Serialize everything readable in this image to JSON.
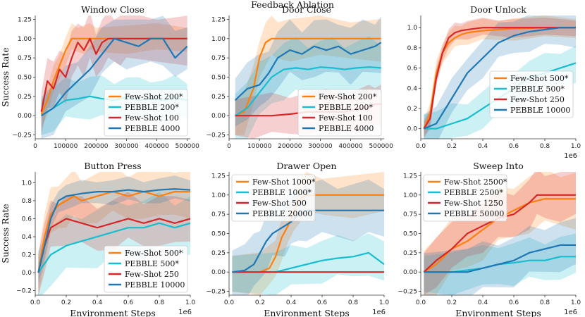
{
  "figure": {
    "suptitle": "Feedback Ablation"
  },
  "colors": {
    "orange": "#ff7f0e",
    "cyan": "#17becf",
    "red": "#d62728",
    "blue": "#1f77b4"
  },
  "chart_data": [
    {
      "type": "line",
      "title": "Window Close",
      "xlabel": "",
      "ylabel": "Success Rate",
      "xlim": [
        0,
        510000
      ],
      "ylim": [
        -0.3,
        1.3
      ],
      "xticks": [
        0,
        100000,
        200000,
        300000,
        400000,
        500000
      ],
      "xtick_labels": [
        "0",
        "100000",
        "200000",
        "300000",
        "400000",
        "500000"
      ],
      "yticks": [
        -0.25,
        0,
        0.25,
        0.5,
        0.75,
        1.0,
        1.25
      ],
      "ytick_labels": [
        "−0.25",
        "0.00",
        "0.25",
        "0.50",
        "0.75",
        "1.00",
        "1.25"
      ],
      "x_offset_label": "",
      "legend_position": "bottom-right",
      "series": [
        {
          "name": "Few-Shot 200*",
          "color": "orange",
          "x": [
            20000,
            40000,
            60000,
            80000,
            100000,
            120000,
            140000,
            160000,
            180000,
            200000,
            300000,
            400000,
            500000
          ],
          "y": [
            0.02,
            0.2,
            0.45,
            0.65,
            0.85,
            1.0,
            1.0,
            1.0,
            1.0,
            1.0,
            1.0,
            1.0,
            1.0
          ],
          "band": 0.2
        },
        {
          "name": "PEBBLE 200*",
          "color": "cyan",
          "x": [
            20000,
            60000,
            100000,
            140000,
            180000,
            220000,
            260000,
            300000,
            340000,
            380000,
            420000,
            460000,
            500000
          ],
          "y": [
            0.0,
            0.1,
            0.2,
            0.22,
            0.25,
            0.22,
            0.2,
            0.24,
            0.2,
            0.22,
            0.2,
            0.23,
            0.2
          ],
          "band": 0.3
        },
        {
          "name": "Few-Shot 100",
          "color": "red",
          "x": [
            20000,
            40000,
            60000,
            80000,
            100000,
            120000,
            140000,
            160000,
            180000,
            200000,
            220000,
            240000,
            260000,
            280000,
            300000,
            400000,
            500000
          ],
          "y": [
            0.05,
            0.45,
            0.35,
            0.6,
            0.5,
            0.75,
            0.95,
            0.85,
            1.0,
            0.8,
            0.95,
            1.0,
            1.0,
            1.0,
            1.0,
            1.0,
            1.0
          ],
          "band": 0.35
        },
        {
          "name": "PEBBLE 4000",
          "color": "blue",
          "x": [
            20000,
            60000,
            100000,
            140000,
            180000,
            220000,
            260000,
            300000,
            340000,
            380000,
            420000,
            460000,
            500000
          ],
          "y": [
            0.0,
            0.1,
            0.3,
            0.45,
            0.6,
            0.8,
            1.0,
            0.95,
            0.9,
            1.0,
            1.0,
            0.75,
            0.9
          ],
          "band": 0.35
        }
      ]
    },
    {
      "type": "line",
      "title": "Door Close",
      "xlabel": "",
      "ylabel": "",
      "xlim": [
        0,
        510000
      ],
      "ylim": [
        -0.3,
        1.3
      ],
      "xticks": [
        0,
        100000,
        200000,
        300000,
        400000,
        500000
      ],
      "xtick_labels": [
        "0",
        "100000",
        "200000",
        "300000",
        "400000",
        "500000"
      ],
      "yticks": [
        -0.25,
        0,
        0.25,
        0.5,
        0.75,
        1.0,
        1.25
      ],
      "ytick_labels": [
        "−0.25",
        "0.00",
        "0.25",
        "0.50",
        "0.75",
        "1.00",
        "1.25"
      ],
      "x_offset_label": "",
      "legend_position": "bottom-right",
      "series": [
        {
          "name": "Few-Shot 200*",
          "color": "orange",
          "x": [
            20000,
            50000,
            80000,
            100000,
            120000,
            140000,
            160000,
            200000,
            300000,
            400000,
            500000
          ],
          "y": [
            0.0,
            0.05,
            0.35,
            0.75,
            0.95,
            1.0,
            1.0,
            1.0,
            1.0,
            1.0,
            1.0
          ],
          "band": 0.3
        },
        {
          "name": "PEBBLE 200*",
          "color": "cyan",
          "x": [
            20000,
            60000,
            100000,
            140000,
            180000,
            220000,
            260000,
            300000,
            340000,
            380000,
            420000,
            460000,
            500000
          ],
          "y": [
            0.0,
            0.1,
            0.3,
            0.5,
            0.6,
            0.62,
            0.6,
            0.63,
            0.62,
            0.6,
            0.62,
            0.63,
            0.62
          ],
          "band": 0.4
        },
        {
          "name": "Few-Shot 100",
          "color": "red",
          "x": [
            20000,
            80000,
            140000,
            200000,
            260000,
            320000,
            380000,
            420000,
            460000,
            480000,
            500000
          ],
          "y": [
            0.0,
            0.0,
            0.0,
            0.02,
            0.05,
            0.05,
            0.05,
            0.08,
            0.1,
            0.15,
            0.15
          ],
          "band": 0.3
        },
        {
          "name": "PEBBLE 4000",
          "color": "blue",
          "x": [
            20000,
            60000,
            100000,
            130000,
            160000,
            200000,
            240000,
            280000,
            320000,
            360000,
            400000,
            440000,
            480000,
            500000
          ],
          "y": [
            0.2,
            0.35,
            0.4,
            0.55,
            0.75,
            0.85,
            0.8,
            0.9,
            0.85,
            0.9,
            0.8,
            0.85,
            0.9,
            0.95
          ],
          "band": 0.4
        }
      ]
    },
    {
      "type": "line",
      "title": "Door Unlock",
      "xlabel": "",
      "ylabel": "",
      "xlim": [
        0,
        1000000
      ],
      "ylim": [
        -0.1,
        1.12
      ],
      "xticks": [
        0,
        200000,
        400000,
        600000,
        800000,
        1000000
      ],
      "xtick_labels": [
        "0.0",
        "0.2",
        "0.4",
        "0.6",
        "0.8",
        "1.0"
      ],
      "yticks": [
        0,
        0.2,
        0.4,
        0.6,
        0.8,
        1.0
      ],
      "ytick_labels": [
        "0.0",
        "0.2",
        "0.4",
        "0.6",
        "0.8",
        "1.0"
      ],
      "x_offset_label": "1e6",
      "legend_position": "center-right",
      "series": [
        {
          "name": "Few-Shot 500*",
          "color": "orange",
          "x": [
            20000,
            60000,
            100000,
            140000,
            180000,
            220000,
            260000,
            300000,
            400000,
            500000,
            600000,
            800000,
            1000000
          ],
          "y": [
            0.0,
            0.15,
            0.55,
            0.75,
            0.85,
            0.9,
            0.93,
            0.95,
            0.97,
            0.98,
            0.99,
            1.0,
            1.0
          ],
          "band": 0.12
        },
        {
          "name": "PEBBLE 500*",
          "color": "cyan",
          "x": [
            20000,
            100000,
            200000,
            300000,
            400000,
            500000,
            600000,
            700000,
            800000,
            900000,
            1000000
          ],
          "y": [
            0.0,
            0.0,
            0.05,
            0.1,
            0.2,
            0.3,
            0.4,
            0.5,
            0.55,
            0.6,
            0.65
          ],
          "band": 0.2
        },
        {
          "name": "Few-Shot 250",
          "color": "red",
          "x": [
            20000,
            60000,
            100000,
            140000,
            180000,
            220000,
            260000,
            300000,
            400000,
            500000,
            600000,
            800000,
            1000000
          ],
          "y": [
            0.0,
            0.1,
            0.5,
            0.75,
            0.9,
            0.95,
            0.97,
            0.98,
            1.0,
            1.0,
            1.0,
            1.0,
            1.0
          ],
          "band": 0.1
        },
        {
          "name": "PEBBLE 10000",
          "color": "blue",
          "x": [
            20000,
            100000,
            200000,
            300000,
            400000,
            500000,
            600000,
            700000,
            800000,
            900000,
            1000000
          ],
          "y": [
            0.0,
            0.05,
            0.3,
            0.55,
            0.7,
            0.85,
            0.92,
            0.96,
            0.98,
            1.0,
            1.0
          ],
          "band": 0.2
        }
      ]
    },
    {
      "type": "line",
      "title": "Button Press",
      "xlabel": "Environment Steps",
      "ylabel": "Success Rate",
      "xlim": [
        0,
        1000000
      ],
      "ylim": [
        -0.25,
        1.12
      ],
      "xticks": [
        0,
        200000,
        400000,
        600000,
        800000,
        1000000
      ],
      "xtick_labels": [
        "0.0",
        "0.2",
        "0.4",
        "0.6",
        "0.8",
        "1.0"
      ],
      "yticks": [
        -0.2,
        0,
        0.2,
        0.4,
        0.6,
        0.8,
        1.0
      ],
      "ytick_labels": [
        "−0.2",
        "0.0",
        "0.2",
        "0.4",
        "0.6",
        "0.8",
        "1.0"
      ],
      "x_offset_label": "1e6",
      "legend_position": "bottom-right",
      "series": [
        {
          "name": "Few-Shot 500*",
          "color": "orange",
          "x": [
            20000,
            60000,
            100000,
            150000,
            200000,
            250000,
            300000,
            400000,
            500000,
            600000,
            700000,
            800000,
            900000,
            1000000
          ],
          "y": [
            0.0,
            0.4,
            0.65,
            0.75,
            0.8,
            0.85,
            0.8,
            0.85,
            0.9,
            0.85,
            0.9,
            0.85,
            0.9,
            0.9
          ],
          "band": 0.3
        },
        {
          "name": "PEBBLE 500*",
          "color": "cyan",
          "x": [
            20000,
            100000,
            200000,
            300000,
            400000,
            500000,
            600000,
            700000,
            800000,
            900000,
            1000000
          ],
          "y": [
            0.0,
            0.2,
            0.3,
            0.35,
            0.4,
            0.45,
            0.5,
            0.5,
            0.55,
            0.5,
            0.55
          ],
          "band": 0.35
        },
        {
          "name": "Few-Shot 250",
          "color": "red",
          "x": [
            20000,
            60000,
            100000,
            150000,
            200000,
            300000,
            400000,
            500000,
            600000,
            700000,
            800000,
            900000,
            1000000
          ],
          "y": [
            0.0,
            0.3,
            0.5,
            0.55,
            0.6,
            0.55,
            0.5,
            0.55,
            0.6,
            0.55,
            0.6,
            0.55,
            0.6
          ],
          "band": 0.3
        },
        {
          "name": "PEBBLE 10000",
          "color": "blue",
          "x": [
            20000,
            60000,
            100000,
            150000,
            200000,
            300000,
            400000,
            500000,
            600000,
            700000,
            800000,
            900000,
            1000000
          ],
          "y": [
            0.0,
            0.3,
            0.6,
            0.8,
            0.85,
            0.88,
            0.9,
            0.9,
            0.92,
            0.9,
            0.92,
            0.93,
            0.92
          ],
          "band": 0.15
        }
      ]
    },
    {
      "type": "line",
      "title": "Drawer Open",
      "xlabel": "Environment Steps",
      "ylabel": "",
      "xlim": [
        0,
        1000000
      ],
      "ylim": [
        -0.3,
        1.3
      ],
      "xticks": [
        0,
        200000,
        400000,
        600000,
        800000,
        1000000
      ],
      "xtick_labels": [
        "0.0",
        "0.2",
        "0.4",
        "0.6",
        "0.8",
        "1.0"
      ],
      "yticks": [
        -0.25,
        0,
        0.25,
        0.5,
        0.75,
        1.0,
        1.25
      ],
      "ytick_labels": [
        "−0.25",
        "0.00",
        "0.25",
        "0.50",
        "0.75",
        "1.00",
        "1.25"
      ],
      "x_offset_label": "1e6",
      "legend_position": "top-left",
      "series": [
        {
          "name": "Few-Shot 1000*",
          "color": "orange",
          "x": [
            20000,
            200000,
            260000,
            300000,
            340000,
            380000,
            420000,
            460000,
            500000,
            600000,
            800000,
            1000000
          ],
          "y": [
            0.0,
            0.0,
            0.05,
            0.2,
            0.45,
            0.6,
            0.8,
            0.95,
            1.0,
            1.0,
            1.0,
            1.0
          ],
          "band": 0.3
        },
        {
          "name": "PEBBLE 1000*",
          "color": "cyan",
          "x": [
            20000,
            300000,
            400000,
            500000,
            600000,
            700000,
            800000,
            900000,
            1000000
          ],
          "y": [
            0.0,
            0.0,
            0.05,
            0.1,
            0.15,
            0.18,
            0.2,
            0.25,
            0.1
          ],
          "band": 0.3
        },
        {
          "name": "Few-Shot 500",
          "color": "red",
          "x": [
            20000,
            1000000
          ],
          "y": [
            0.0,
            0.0
          ],
          "band": 0.0
        },
        {
          "name": "PEBBLE 20000",
          "color": "blue",
          "x": [
            20000,
            100000,
            160000,
            200000,
            240000,
            280000,
            320000,
            360000,
            400000,
            450000,
            500000,
            600000,
            700000,
            800000,
            900000,
            1000000
          ],
          "y": [
            0.0,
            0.02,
            0.1,
            0.25,
            0.4,
            0.5,
            0.55,
            0.6,
            0.65,
            0.75,
            0.8,
            0.8,
            0.8,
            0.8,
            0.8,
            0.8
          ],
          "band": 0.4
        }
      ]
    },
    {
      "type": "line",
      "title": "Sweep Into",
      "xlabel": "Environment Steps",
      "ylabel": "",
      "xlim": [
        0,
        1000000
      ],
      "ylim": [
        -0.3,
        1.3
      ],
      "xticks": [
        0,
        200000,
        400000,
        600000,
        800000,
        1000000
      ],
      "xtick_labels": [
        "0.0",
        "0.2",
        "0.4",
        "0.6",
        "0.8",
        "1.0"
      ],
      "yticks": [
        -0.25,
        0,
        0.25,
        0.5,
        0.75,
        1.0,
        1.25
      ],
      "ytick_labels": [
        "−0.25",
        "0.00",
        "0.25",
        "0.50",
        "0.75",
        "1.00",
        "1.25"
      ],
      "x_offset_label": "1e6",
      "legend_position": "top-left",
      "series": [
        {
          "name": "Few-Shot 2500*",
          "color": "orange",
          "x": [
            20000,
            100000,
            200000,
            300000,
            400000,
            500000,
            600000,
            700000,
            800000,
            900000,
            1000000
          ],
          "y": [
            0.0,
            0.1,
            0.3,
            0.4,
            0.55,
            0.7,
            0.8,
            0.9,
            0.95,
            0.95,
            0.95
          ],
          "band": 0.4
        },
        {
          "name": "PEBBLE 2500*",
          "color": "cyan",
          "x": [
            20000,
            200000,
            400000,
            500000,
            600000,
            700000,
            800000,
            900000,
            1000000
          ],
          "y": [
            0.0,
            0.0,
            0.05,
            0.1,
            0.12,
            0.15,
            0.15,
            0.2,
            0.2
          ],
          "band": 0.3
        },
        {
          "name": "Few-Shot 1250",
          "color": "red",
          "x": [
            20000,
            100000,
            200000,
            300000,
            400000,
            500000,
            600000,
            700000,
            750000,
            800000,
            900000,
            1000000
          ],
          "y": [
            0.0,
            0.15,
            0.3,
            0.5,
            0.6,
            0.7,
            0.75,
            0.9,
            1.0,
            1.0,
            1.0,
            1.0
          ],
          "band": 0.35
        },
        {
          "name": "PEBBLE 50000",
          "color": "blue",
          "x": [
            20000,
            300000,
            400000,
            500000,
            600000,
            700000,
            800000,
            900000,
            1000000
          ],
          "y": [
            0.0,
            0.0,
            0.05,
            0.1,
            0.15,
            0.25,
            0.3,
            0.35,
            0.35
          ],
          "band": 0.35
        }
      ]
    }
  ]
}
